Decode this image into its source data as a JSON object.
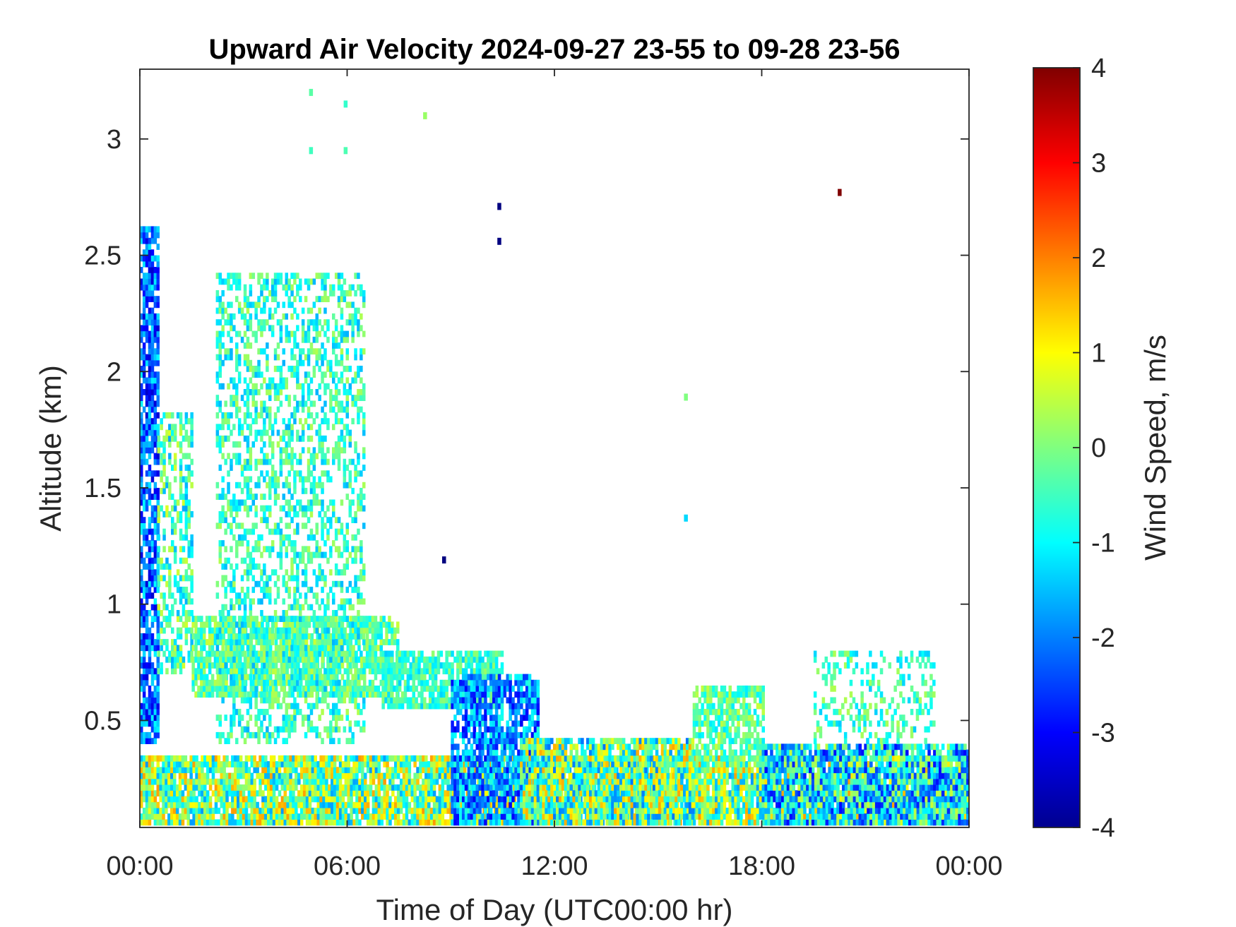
{
  "chart_data": {
    "type": "heatmap",
    "title": "Upward Air Velocity 2024-09-27 23-55 to 09-28 23-56",
    "xlabel": "Time of Day (UTC00:00 hr)",
    "ylabel": "Altitude (km)",
    "colorbar_label": "Wind Speed, m/s",
    "x_ticks": [
      "00:00",
      "06:00",
      "12:00",
      "18:00",
      "00:00"
    ],
    "x_tick_hours": [
      0,
      6,
      12,
      18,
      24
    ],
    "y_ticks": [
      "0.5",
      "1",
      "1.5",
      "2",
      "2.5",
      "3"
    ],
    "y_tick_values": [
      0.5,
      1,
      1.5,
      2,
      2.5,
      3
    ],
    "colorbar_ticks": [
      "4",
      "3",
      "2",
      "1",
      "0",
      "-1",
      "-2",
      "-3",
      "-4"
    ],
    "colorbar_tick_values": [
      4,
      3,
      2,
      1,
      0,
      -1,
      -2,
      -3,
      -4
    ],
    "xlim": [
      0,
      24
    ],
    "ylim": [
      0.04,
      3.3
    ],
    "clim": [
      -4,
      4
    ],
    "colormap": "jet",
    "grid": false,
    "coverage_regions": [
      {
        "t": [
          0.0,
          24.0
        ],
        "alt": [
          0.05,
          0.35
        ],
        "mean": 0.0,
        "spread": 1.8,
        "density": 0.9
      },
      {
        "t": [
          0.0,
          0.5
        ],
        "alt": [
          0.4,
          2.6
        ],
        "mean": -2.2,
        "spread": 1.2,
        "density": 0.8
      },
      {
        "t": [
          0.5,
          1.5
        ],
        "alt": [
          0.7,
          1.8
        ],
        "mean": -0.5,
        "spread": 1.2,
        "density": 0.5
      },
      {
        "t": [
          1.5,
          7.5
        ],
        "alt": [
          0.6,
          0.95
        ],
        "mean": -0.3,
        "spread": 0.9,
        "density": 0.8
      },
      {
        "t": [
          2.2,
          6.5
        ],
        "alt": [
          0.4,
          2.4
        ],
        "mean": -0.6,
        "spread": 1.0,
        "density": 0.45
      },
      {
        "t": [
          7.0,
          10.5
        ],
        "alt": [
          0.55,
          0.8
        ],
        "mean": -0.6,
        "spread": 0.8,
        "density": 0.8
      },
      {
        "t": [
          9.0,
          11.5
        ],
        "alt": [
          0.05,
          0.7
        ],
        "mean": -1.9,
        "spread": 1.2,
        "density": 0.8
      },
      {
        "t": [
          11.0,
          16.0
        ],
        "alt": [
          0.05,
          0.42
        ],
        "mean": -0.2,
        "spread": 1.9,
        "density": 0.85
      },
      {
        "t": [
          16.0,
          18.0
        ],
        "alt": [
          0.3,
          0.65
        ],
        "mean": -0.3,
        "spread": 0.9,
        "density": 0.7
      },
      {
        "t": [
          18.0,
          24.0
        ],
        "alt": [
          0.05,
          0.4
        ],
        "mean": -1.2,
        "spread": 1.8,
        "density": 0.85
      },
      {
        "t": [
          19.5,
          23.0
        ],
        "alt": [
          0.4,
          0.8
        ],
        "mean": -0.5,
        "spread": 0.9,
        "density": 0.3
      }
    ],
    "isolated_points": [
      {
        "t": 4.95,
        "alt": 3.2,
        "v": -0.3
      },
      {
        "t": 4.95,
        "alt": 2.95,
        "v": -0.5
      },
      {
        "t": 5.95,
        "alt": 3.15,
        "v": -0.6
      },
      {
        "t": 5.95,
        "alt": 2.95,
        "v": -0.4
      },
      {
        "t": 8.25,
        "alt": 3.1,
        "v": 0.2
      },
      {
        "t": 10.4,
        "alt": 2.71,
        "v": -4.0
      },
      {
        "t": 10.4,
        "alt": 2.56,
        "v": -4.0
      },
      {
        "t": 8.8,
        "alt": 1.19,
        "v": -4.0
      },
      {
        "t": 15.8,
        "alt": 1.89,
        "v": 0.0
      },
      {
        "t": 15.8,
        "alt": 1.37,
        "v": -1.3
      },
      {
        "t": 20.25,
        "alt": 2.77,
        "v": 4.0
      }
    ]
  }
}
